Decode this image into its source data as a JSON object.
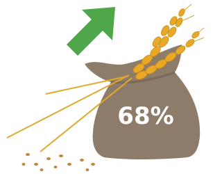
{
  "sack": {
    "label": "68%"
  }
}
